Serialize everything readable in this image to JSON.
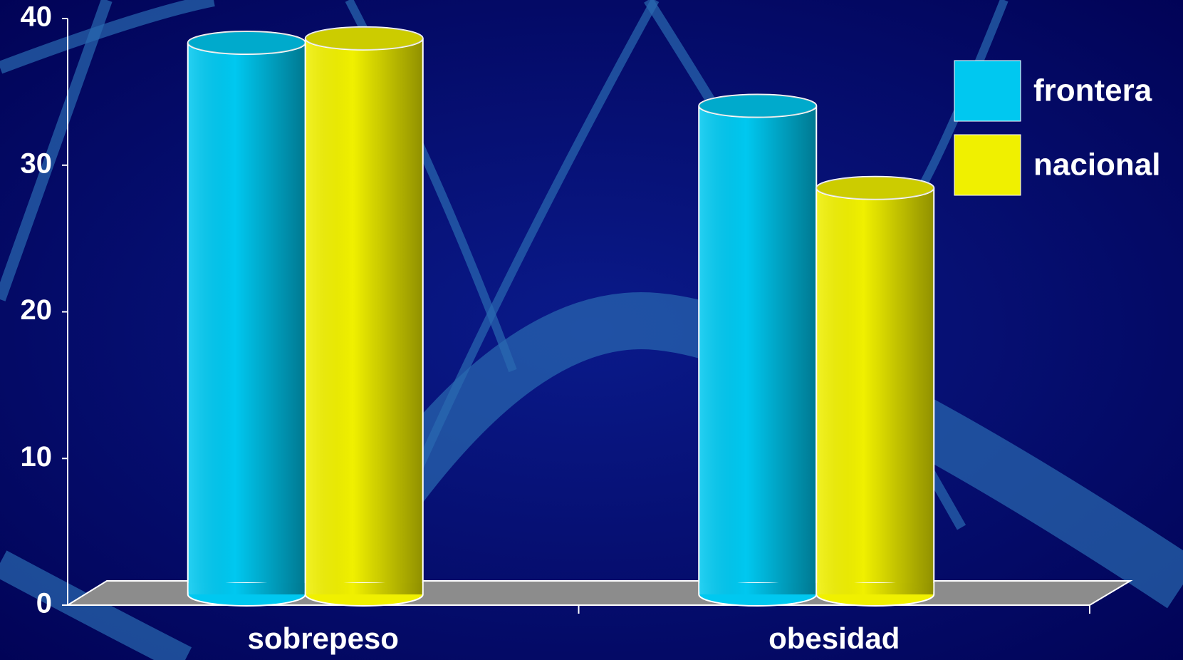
{
  "chart_data": {
    "type": "bar3d",
    "categories": [
      "sobrepeso",
      "obesidad"
    ],
    "series": [
      {
        "name": "frontera",
        "color": "#00c8f0",
        "values": [
          38.2,
          33.9
        ]
      },
      {
        "name": "nacional",
        "color": "#f0f000",
        "values": [
          38.5,
          28.3
        ]
      }
    ],
    "ylim": [
      0,
      40
    ],
    "yticks": [
      0,
      10,
      20,
      30,
      40
    ],
    "legend": "top-right"
  }
}
